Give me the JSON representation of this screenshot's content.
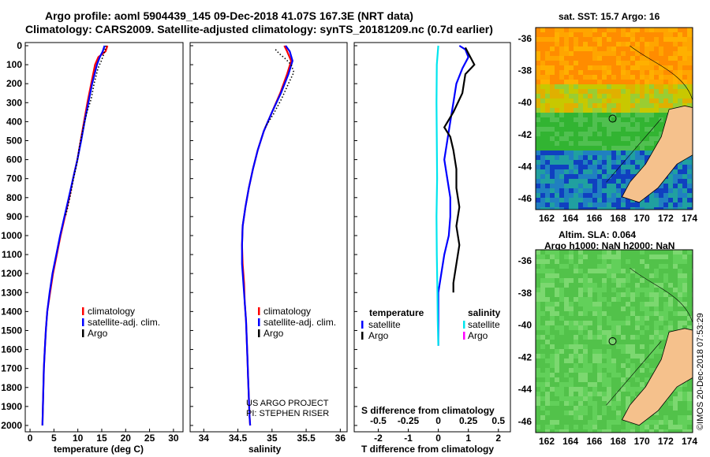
{
  "header": {
    "line1": "Argo profile: aoml 5904439_145 09-Dec-2018 41.07S 167.3E (NRT data)",
    "line2": "Climatology: CARS2009. Satellite-adjusted climatology: synTS_20181209.nc (0.7d earlier)"
  },
  "depth_ticks": [
    0,
    100,
    200,
    300,
    400,
    500,
    600,
    700,
    800,
    900,
    1000,
    1100,
    1200,
    1300,
    1400,
    1500,
    1600,
    1700,
    1800,
    1900,
    2000
  ],
  "chart_data": [
    {
      "type": "line",
      "title": "",
      "xlabel": "temperature (deg C)",
      "ylabel": "depth",
      "xlim": [
        -1,
        32
      ],
      "ylim": [
        2050,
        0
      ],
      "xticks": [
        0,
        5,
        10,
        15,
        20,
        25,
        30
      ],
      "legend": [
        "climatology",
        "satellite-adj. clim.",
        "Argo"
      ],
      "series": [
        {
          "name": "climatology",
          "color": "#ff0000",
          "points": [
            [
              16.2,
              0
            ],
            [
              15.8,
              30
            ],
            [
              14.3,
              60
            ],
            [
              13.6,
              100
            ],
            [
              12.8,
              200
            ],
            [
              12.0,
              300
            ],
            [
              11.3,
              400
            ],
            [
              10.6,
              500
            ],
            [
              9.9,
              600
            ],
            [
              9.0,
              700
            ],
            [
              8.2,
              800
            ],
            [
              7.3,
              900
            ],
            [
              6.4,
              1000
            ],
            [
              5.6,
              1100
            ],
            [
              4.8,
              1200
            ],
            [
              4.2,
              1300
            ],
            [
              3.6,
              1400
            ],
            [
              3.3,
              1500
            ],
            [
              3.1,
              1600
            ],
            [
              2.9,
              1700
            ],
            [
              2.8,
              1800
            ],
            [
              2.7,
              1900
            ],
            [
              2.6,
              2000
            ]
          ]
        },
        {
          "name": "satellite-adj. clim.",
          "color": "#0000ff",
          "points": [
            [
              15.6,
              0
            ],
            [
              15.2,
              30
            ],
            [
              14.6,
              60
            ],
            [
              14.0,
              100
            ],
            [
              13.0,
              200
            ],
            [
              12.2,
              300
            ],
            [
              11.4,
              400
            ],
            [
              10.7,
              500
            ],
            [
              9.9,
              600
            ],
            [
              9.0,
              700
            ],
            [
              8.1,
              800
            ],
            [
              7.2,
              900
            ],
            [
              6.3,
              1000
            ],
            [
              5.5,
              1100
            ],
            [
              4.7,
              1200
            ],
            [
              4.1,
              1300
            ],
            [
              3.6,
              1400
            ],
            [
              3.3,
              1500
            ],
            [
              3.1,
              1600
            ],
            [
              2.9,
              1700
            ],
            [
              2.8,
              1800
            ],
            [
              2.7,
              1900
            ],
            [
              2.6,
              2000
            ]
          ]
        },
        {
          "name": "Argo",
          "color": "#000000",
          "dotted": true,
          "points": [
            [
              15.9,
              0
            ],
            [
              15.5,
              40
            ],
            [
              14.9,
              80
            ],
            [
              14.2,
              120
            ],
            [
              13.4,
              200
            ],
            [
              12.8,
              280
            ],
            [
              11.9,
              350
            ],
            [
              11.0,
              450
            ],
            [
              10.4,
              520
            ],
            [
              9.8,
              620
            ],
            [
              9.1,
              700
            ],
            [
              8.5,
              780
            ],
            [
              7.9,
              850
            ],
            [
              7.4,
              900
            ]
          ]
        }
      ]
    },
    {
      "type": "line",
      "title": "",
      "xlabel": "salinity",
      "ylabel": "depth",
      "xlim": [
        33.8,
        36.1
      ],
      "ylim": [
        2050,
        0
      ],
      "xticks": [
        34,
        34.5,
        35,
        35.5,
        36
      ],
      "xticklabels": [
        "34",
        "34.5",
        "35",
        "35.5",
        "36"
      ],
      "legend": [
        "climatology",
        "satellite-adj. clim.",
        "Argo"
      ],
      "series": [
        {
          "name": "climatology",
          "color": "#ff0000",
          "points": [
            [
              35.18,
              0
            ],
            [
              35.22,
              30
            ],
            [
              35.28,
              80
            ],
            [
              35.22,
              150
            ],
            [
              35.12,
              250
            ],
            [
              35.0,
              350
            ],
            [
              34.88,
              450
            ],
            [
              34.79,
              550
            ],
            [
              34.72,
              650
            ],
            [
              34.66,
              750
            ],
            [
              34.61,
              850
            ],
            [
              34.57,
              950
            ],
            [
              34.56,
              1050
            ],
            [
              34.57,
              1150
            ],
            [
              34.59,
              1250
            ],
            [
              34.6,
              1350
            ],
            [
              34.62,
              1450
            ],
            [
              34.63,
              1550
            ],
            [
              34.64,
              1650
            ],
            [
              34.65,
              1750
            ],
            [
              34.66,
              1850
            ],
            [
              34.67,
              1950
            ],
            [
              34.68,
              2000
            ]
          ]
        },
        {
          "name": "satellite-adj. clim.",
          "color": "#0000ff",
          "points": [
            [
              35.2,
              0
            ],
            [
              35.26,
              30
            ],
            [
              35.3,
              80
            ],
            [
              35.24,
              150
            ],
            [
              35.13,
              250
            ],
            [
              35.0,
              350
            ],
            [
              34.88,
              450
            ],
            [
              34.79,
              550
            ],
            [
              34.72,
              650
            ],
            [
              34.66,
              750
            ],
            [
              34.61,
              850
            ],
            [
              34.57,
              950
            ],
            [
              34.56,
              1050
            ],
            [
              34.56,
              1150
            ],
            [
              34.58,
              1250
            ],
            [
              34.6,
              1350
            ],
            [
              34.62,
              1450
            ],
            [
              34.63,
              1550
            ],
            [
              34.64,
              1650
            ],
            [
              34.65,
              1750
            ],
            [
              34.66,
              1850
            ],
            [
              34.67,
              1950
            ],
            [
              34.68,
              2000
            ]
          ]
        },
        {
          "name": "Argo",
          "color": "#000000",
          "dotted": true,
          "points": [
            [
              35.05,
              20
            ],
            [
              35.1,
              40
            ],
            [
              35.2,
              70
            ],
            [
              35.28,
              100
            ],
            [
              35.32,
              140
            ],
            [
              35.24,
              200
            ],
            [
              35.14,
              280
            ],
            [
              35.02,
              360
            ],
            [
              34.9,
              430
            ]
          ]
        }
      ]
    },
    {
      "type": "line",
      "title": "",
      "xlabel": "T difference from climatology",
      "xlabel2": "S difference from climatology",
      "ylabel": "depth",
      "xlim": [
        -2.8,
        2.4
      ],
      "ylim": [
        2050,
        0
      ],
      "xticks": [
        -2,
        -1,
        0,
        1,
        2
      ],
      "xticklabels": [
        "-2",
        "-1",
        "0",
        "1",
        "2"
      ],
      "xticks_s": [
        -0.5,
        -0.25,
        0,
        0.25,
        0.5
      ],
      "xticklabels_s": [
        "-0.5",
        "-0.25",
        "0",
        "0.25",
        "0.5"
      ],
      "legend": {
        "temperature": [
          "satellite",
          "Argo"
        ],
        "salinity": [
          "satellite",
          "Argo"
        ]
      },
      "legend_titles": [
        "temperature",
        "salinity"
      ],
      "series": [
        {
          "name": "T satellite",
          "color": "#0000ff",
          "points": [
            [
              0.7,
              0
            ],
            [
              0.9,
              20
            ],
            [
              1.0,
              60
            ],
            [
              0.8,
              120
            ],
            [
              0.6,
              200
            ],
            [
              0.5,
              300
            ],
            [
              0.4,
              400
            ],
            [
              0.3,
              500
            ],
            [
              0.2,
              600
            ],
            [
              0.3,
              700
            ],
            [
              0.4,
              800
            ],
            [
              0.4,
              900
            ],
            [
              0.35,
              1000
            ],
            [
              0.2,
              1100
            ],
            [
              0.1,
              1200
            ],
            [
              0.0,
              1300
            ],
            [
              0.0,
              1400
            ],
            [
              0.0,
              1500
            ],
            [
              0.0,
              1580
            ]
          ]
        },
        {
          "name": "S satellite",
          "color": "#00e5ee",
          "points": [
            [
              0.0,
              0
            ],
            [
              -0.05,
              100
            ],
            [
              -0.06,
              300
            ],
            [
              -0.05,
              500
            ],
            [
              -0.04,
              700
            ],
            [
              -0.06,
              900
            ],
            [
              -0.05,
              1100
            ],
            [
              -0.03,
              1300
            ],
            [
              -0.02,
              1450
            ],
            [
              0.0,
              1580
            ]
          ]
        },
        {
          "name": "T Argo",
          "color": "#000000",
          "points": [
            [
              0.9,
              10
            ],
            [
              1.0,
              40
            ],
            [
              1.1,
              70
            ],
            [
              1.2,
              100
            ],
            [
              0.9,
              150
            ],
            [
              0.8,
              250
            ],
            [
              0.5,
              350
            ],
            [
              0.2,
              430
            ],
            [
              0.4,
              480
            ],
            [
              0.5,
              550
            ],
            [
              0.6,
              650
            ],
            [
              0.6,
              750
            ],
            [
              0.7,
              850
            ],
            [
              0.6,
              950
            ],
            [
              0.7,
              1050
            ],
            [
              0.6,
              1150
            ],
            [
              0.5,
              1250
            ],
            [
              0.5,
              1300
            ]
          ]
        }
      ]
    }
  ],
  "legend_labels": {
    "climatology": "climatology",
    "sat_clim": "satellite-adj. clim.",
    "argo": "Argo",
    "temperature": "temperature",
    "salinity": "salinity",
    "satellite": "satellite"
  },
  "axis_labels": {
    "temp": "temperature (deg C)",
    "sal": "salinity",
    "tdiff": "T difference from climatology",
    "sdiff": "S difference from climatology"
  },
  "credits": {
    "line1": "US ARGO PROJECT",
    "line2": "PI: STEPHEN RISER"
  },
  "maps": {
    "sst_title": "sat. SST: 15.7 Argo: 16",
    "sla_title": "Altim. SLA: 0.064",
    "sla_subtitle": "Argo h1000: NaN h2000: NaN",
    "lat_ticks": [
      "-36",
      "-38",
      "-40",
      "-42",
      "-44",
      "-46"
    ],
    "lon_ticks": [
      "162",
      "164",
      "166",
      "168",
      "170",
      "172",
      "174"
    ],
    "timestamp": "©IMOS 20-Dec-2018 07:53:29"
  }
}
